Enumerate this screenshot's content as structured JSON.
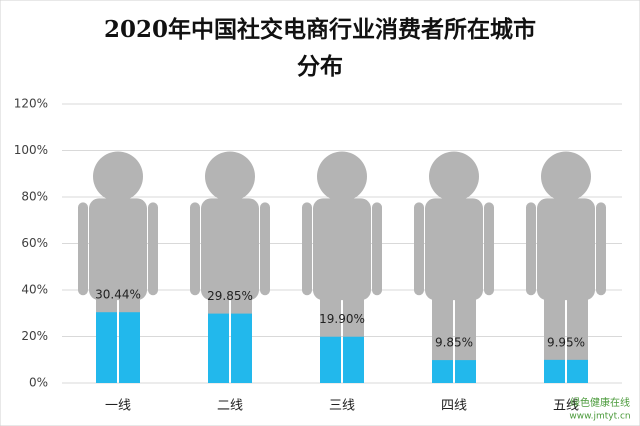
{
  "chart_data": {
    "type": "pictogram",
    "title": "2020年中国社交电商行业消费者所在城市分布",
    "categories": [
      "一线",
      "二线",
      "三线",
      "四线",
      "五线"
    ],
    "values": [
      30.44,
      29.85,
      19.9,
      9.85,
      9.95
    ],
    "value_labels": [
      "30.44%",
      "29.85%",
      "19.90%",
      "9.85%",
      "9.95%"
    ],
    "color": "#22b8ec",
    "figure_color": "#b4b4b4",
    "ylim": [
      0,
      120
    ],
    "yticks": [
      {
        "value": 0,
        "label": "0%"
      },
      {
        "value": 20,
        "label": "20%"
      },
      {
        "value": 40,
        "label": "40%"
      },
      {
        "value": 60,
        "label": "60%"
      },
      {
        "value": 80,
        "label": "80%"
      },
      {
        "value": 100,
        "label": "100%"
      },
      {
        "value": 120,
        "label": "120%"
      }
    ],
    "grid": true
  },
  "watermark": {
    "name": "绿色健康在线",
    "url": "www.jmtyt.cn"
  }
}
